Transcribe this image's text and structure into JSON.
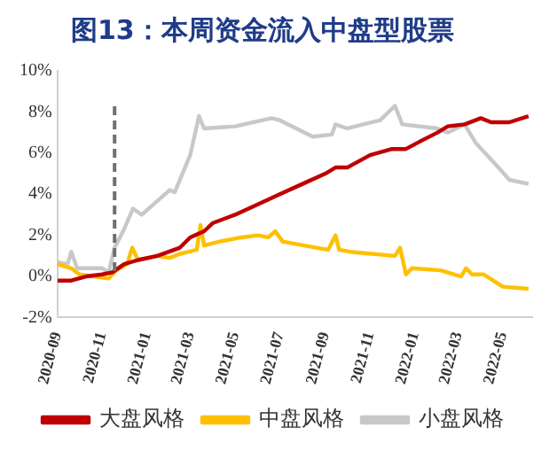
{
  "chart_data": {
    "type": "line",
    "title": "图13：本周资金流入中盘型股票",
    "xlim": [
      "2020-09-01",
      "2022-06-10"
    ],
    "xticks": [
      "2020-09",
      "2020-11",
      "2021-01",
      "2021-03",
      "2021-05",
      "2021-07",
      "2021-09",
      "2021-11",
      "2022-01",
      "2022-03",
      "2022-05"
    ],
    "ylim": [
      -2,
      10
    ],
    "yticks": [
      {
        "value": -2,
        "label": "-2%"
      },
      {
        "value": 0,
        "label": "0%"
      },
      {
        "value": 2,
        "label": "2%"
      },
      {
        "value": 4,
        "label": "4%"
      },
      {
        "value": 6,
        "label": "6%"
      },
      {
        "value": 8,
        "label": "8%"
      },
      {
        "value": 10,
        "label": "10%"
      }
    ],
    "legend": "bottom",
    "marker": "none",
    "line_style": "solid",
    "ref_lines": [
      {
        "axis": "x",
        "value": "2020-11-18",
        "color": "#707070",
        "line_style": "dashed"
      }
    ],
    "series": [
      {
        "name": "大盘风格",
        "color": "#c00000",
        "x": [
          "2020-09-01",
          "2020-09-20",
          "2020-10-10",
          "2020-11-01",
          "2020-11-15",
          "2020-12-01",
          "2020-12-20",
          "2021-01-15",
          "2021-02-15",
          "2021-03-01",
          "2021-03-20",
          "2021-04-01",
          "2021-05-01",
          "2021-06-01",
          "2021-07-01",
          "2021-08-01",
          "2021-09-01",
          "2021-09-15",
          "2021-10-01",
          "2021-11-01",
          "2021-12-01",
          "2021-12-20",
          "2022-01-10",
          "2022-02-01",
          "2022-02-15",
          "2022-03-10",
          "2022-04-01",
          "2022-04-15",
          "2022-05-10",
          "2022-06-05"
        ],
        "values": [
          -0.2,
          -0.2,
          0.0,
          0.1,
          0.2,
          0.6,
          0.8,
          1.0,
          1.4,
          1.9,
          2.2,
          2.6,
          3.0,
          3.5,
          4.0,
          4.5,
          5.0,
          5.3,
          5.3,
          5.9,
          6.2,
          6.2,
          6.6,
          7.0,
          7.3,
          7.4,
          7.7,
          7.5,
          7.5,
          7.8
        ]
      },
      {
        "name": "中盘风格",
        "color": "#ffc000",
        "x": [
          "2020-09-01",
          "2020-09-20",
          "2020-10-01",
          "2020-10-20",
          "2020-11-10",
          "2020-11-20",
          "2020-12-05",
          "2020-12-12",
          "2020-12-20",
          "2021-01-15",
          "2021-02-01",
          "2021-02-15",
          "2021-03-10",
          "2021-03-15",
          "2021-03-20",
          "2021-04-10",
          "2021-05-10",
          "2021-06-01",
          "2021-06-15",
          "2021-06-25",
          "2021-07-05",
          "2021-08-20",
          "2021-09-05",
          "2021-09-15",
          "2021-09-20",
          "2021-10-05",
          "2021-12-05",
          "2021-12-12",
          "2021-12-20",
          "2021-12-28",
          "2022-02-05",
          "2022-03-05",
          "2022-03-12",
          "2022-03-20",
          "2022-04-05",
          "2022-05-01",
          "2022-06-05"
        ],
        "values": [
          0.6,
          0.4,
          0.1,
          0.0,
          -0.1,
          0.3,
          0.6,
          1.4,
          0.8,
          1.0,
          0.9,
          1.1,
          1.3,
          2.5,
          1.5,
          1.7,
          1.9,
          2.0,
          1.9,
          2.2,
          1.7,
          1.4,
          1.3,
          2.0,
          1.3,
          1.2,
          1.0,
          1.4,
          0.1,
          0.4,
          0.3,
          0.0,
          0.4,
          0.1,
          0.1,
          -0.5,
          -0.6
        ]
      },
      {
        "name": "小盘风格",
        "color": "#c8c8c8",
        "x": [
          "2020-09-01",
          "2020-09-15",
          "2020-09-20",
          "2020-09-28",
          "2020-10-01",
          "2020-11-01",
          "2020-11-10",
          "2020-11-18",
          "2020-12-01",
          "2020-12-13",
          "2020-12-25",
          "2021-02-01",
          "2021-02-08",
          "2021-03-01",
          "2021-03-13",
          "2021-03-20",
          "2021-05-01",
          "2021-06-20",
          "2021-07-01",
          "2021-08-15",
          "2021-09-10",
          "2021-09-15",
          "2021-10-01",
          "2021-11-15",
          "2021-12-05",
          "2021-12-15",
          "2022-02-01",
          "2022-02-15",
          "2022-03-10",
          "2022-03-25",
          "2022-04-20",
          "2022-05-10",
          "2022-06-05"
        ],
        "values": [
          0.7,
          0.6,
          1.2,
          0.4,
          0.4,
          0.4,
          0.2,
          1.4,
          2.3,
          3.3,
          3.0,
          4.2,
          4.1,
          5.9,
          7.8,
          7.2,
          7.3,
          7.7,
          7.6,
          6.8,
          6.9,
          7.4,
          7.2,
          7.6,
          8.3,
          7.4,
          7.2,
          7.0,
          7.4,
          6.5,
          5.5,
          4.7,
          4.5
        ]
      }
    ]
  }
}
